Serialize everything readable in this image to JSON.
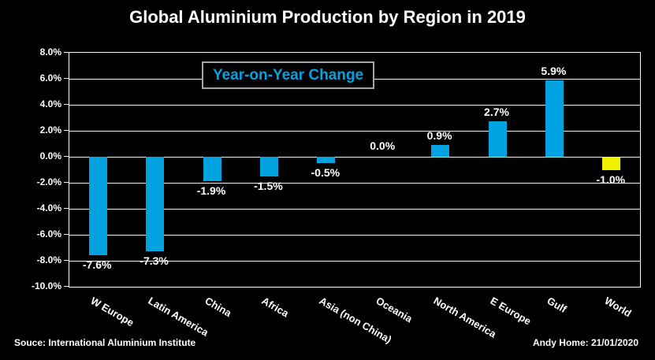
{
  "title": "Global Aluminium Production by Region in 2019",
  "legend": {
    "label": "Year-on-Year Change"
  },
  "footer": {
    "source": "Souce: International Aluminium Institute",
    "credit": "Andy Home: 21/01/2020"
  },
  "colors": {
    "background": "#000000",
    "bar": "#00A3E0",
    "highlight_bar": "#F1F100",
    "legend_text": "#00A3E4",
    "legend_border": "#A6A6A6",
    "grid": "#F2F2F2",
    "frame": "#FFFFFF",
    "text": "#FFFFFF"
  },
  "chart_data": {
    "type": "bar",
    "title": "Global Aluminium Production by Region in 2019",
    "subtitle": "Year-on-Year Change",
    "categories": [
      "W Europe",
      "Latin America",
      "China",
      "Africa",
      "Asia (non China)",
      "Oceania",
      "North America",
      "E Europe",
      "Gulf",
      "World"
    ],
    "values": [
      -7.6,
      -7.3,
      -1.9,
      -1.5,
      -0.5,
      0.0,
      0.9,
      2.7,
      5.9,
      -1.0
    ],
    "data_labels": [
      "-7.6%",
      "-7.3%",
      "-1.9%",
      "-1.5%",
      "-0.5%",
      "0.0%",
      "0.9%",
      "2.7%",
      "5.9%",
      "-1.0%"
    ],
    "highlight_index": 9,
    "xlabel": "",
    "ylabel": "",
    "ylim": [
      -10,
      8
    ],
    "ytick_step": 2,
    "ytick_labels": [
      "8.0%",
      "6.0%",
      "4.0%",
      "2.0%",
      "0.0%",
      "-2.0%",
      "-4.0%",
      "-6.0%",
      "-8.0%",
      "-10.0%"
    ],
    "grid": true,
    "legend_position": "inside-top-left"
  }
}
